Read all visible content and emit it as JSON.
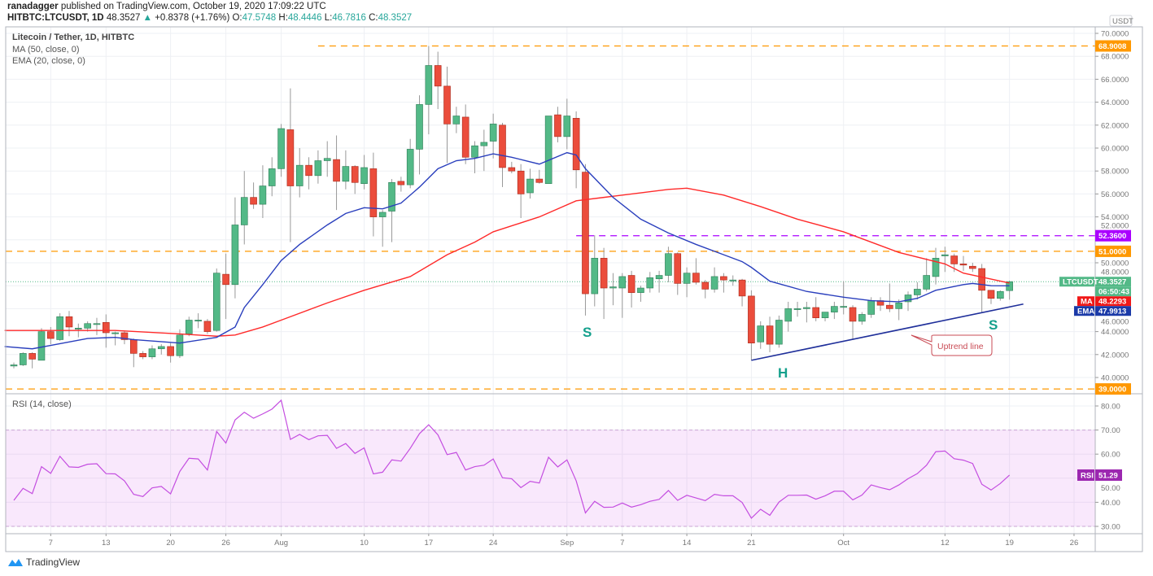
{
  "header": {
    "author": "ranadagger",
    "published": "published on TradingView.com, October 19, 2020 17:09:22 UTC",
    "symbol": "HITBTC:LTCUSDT, 1D",
    "last": "48.3527",
    "change": "+0.8378 (+1.76%)",
    "o_label": "O:",
    "o": "47.5748",
    "h_label": "H:",
    "h": "48.4446",
    "l_label": "L:",
    "l": "46.7816",
    "c_label": "C:",
    "c": "48.3527"
  },
  "legend": {
    "title": "Litecoin / Tether, 1D, HITBTC",
    "ma": "MA (50, close, 0)",
    "ema": "EMA (20, close, 0)",
    "rsi": "RSI (14, close)"
  },
  "axis": {
    "currency": "USDT",
    "tags": {
      "res_high": "68.9008",
      "res_purple": "52.3600",
      "res_51": "51.0000",
      "support": "39.0000",
      "symbol": "LTCUSDT",
      "last": "48.3527",
      "countdown": "06:50:43",
      "ma_label": "MA",
      "ma": "48.2293",
      "ema_label": "EMA",
      "ema": "47.9913",
      "rsi_label": "RSI",
      "rsi": "51.29"
    }
  },
  "annotations": {
    "s_left": "S",
    "head": "H",
    "s_right": "S",
    "uptrend": "Uptrend line"
  },
  "colors": {
    "up": "#53b987",
    "down": "#eb4d3c",
    "ma": "#ff2a2a",
    "ema": "#2a3fbd",
    "orange": "#ff9800",
    "purple": "#aa00ff",
    "trend": "#1f2f9a",
    "rsi": "#c44ee0"
  },
  "logo": "TradingView",
  "chart_data": {
    "type": "candlestick",
    "title": "Litecoin / Tether, 1D, HITBTC",
    "start_date": "2020-07-03",
    "ohlc": [
      [
        41.0,
        41.3,
        40.8,
        41.1
      ],
      [
        41.1,
        42.2,
        41.0,
        42.1
      ],
      [
        42.1,
        42.2,
        40.8,
        41.6
      ],
      [
        41.5,
        44.3,
        41.5,
        44.0
      ],
      [
        44.0,
        44.4,
        42.9,
        43.4
      ],
      [
        43.3,
        45.6,
        43.2,
        45.3
      ],
      [
        45.3,
        45.8,
        43.6,
        44.4
      ],
      [
        44.3,
        44.7,
        43.5,
        44.3
      ],
      [
        44.3,
        44.9,
        44.0,
        44.7
      ],
      [
        44.7,
        45.2,
        43.7,
        44.7
      ],
      [
        44.8,
        45.5,
        42.6,
        43.9
      ],
      [
        43.9,
        44.0,
        42.8,
        43.9
      ],
      [
        43.9,
        44.1,
        42.9,
        43.3
      ],
      [
        43.3,
        43.4,
        40.9,
        42.1
      ],
      [
        42.1,
        42.3,
        41.6,
        41.8
      ],
      [
        41.8,
        42.8,
        41.6,
        42.5
      ],
      [
        42.5,
        42.9,
        42.0,
        42.7
      ],
      [
        42.7,
        43.0,
        41.3,
        41.9
      ],
      [
        41.9,
        44.2,
        41.7,
        43.7
      ],
      [
        43.8,
        45.3,
        43.6,
        45.0
      ],
      [
        45.0,
        45.6,
        44.3,
        45.0
      ],
      [
        44.9,
        45.1,
        43.8,
        44.0
      ],
      [
        44.1,
        49.5,
        44.0,
        49.1
      ],
      [
        49.0,
        50.8,
        45.1,
        48.1
      ],
      [
        48.1,
        55.7,
        46.9,
        53.3
      ],
      [
        53.3,
        58.0,
        51.6,
        55.7
      ],
      [
        55.7,
        57.0,
        54.7,
        55.1
      ],
      [
        55.1,
        58.5,
        53.9,
        56.7
      ],
      [
        56.7,
        59.2,
        55.8,
        58.2
      ],
      [
        58.2,
        62.1,
        57.5,
        61.7
      ],
      [
        61.6,
        65.2,
        51.8,
        56.7
      ],
      [
        56.7,
        60.0,
        55.7,
        58.5
      ],
      [
        58.5,
        59.2,
        56.4,
        57.6
      ],
      [
        57.6,
        59.8,
        56.9,
        58.9
      ],
      [
        58.9,
        60.6,
        57.5,
        59.1
      ],
      [
        59.0,
        61.1,
        54.6,
        57.1
      ],
      [
        57.1,
        59.8,
        56.4,
        58.4
      ],
      [
        58.4,
        58.5,
        56.0,
        57.0
      ],
      [
        56.9,
        59.4,
        56.4,
        58.3
      ],
      [
        58.2,
        59.6,
        52.3,
        54.0
      ],
      [
        54.0,
        54.6,
        51.4,
        54.4
      ],
      [
        54.5,
        57.3,
        51.8,
        57.0
      ],
      [
        57.1,
        57.5,
        56.2,
        56.8
      ],
      [
        56.8,
        60.8,
        56.5,
        59.9
      ],
      [
        59.9,
        64.6,
        57.7,
        63.8
      ],
      [
        63.8,
        68.9,
        61.2,
        67.2
      ],
      [
        67.2,
        68.4,
        63.4,
        65.4
      ],
      [
        65.4,
        67.1,
        58.7,
        62.1
      ],
      [
        62.1,
        63.6,
        61.3,
        62.8
      ],
      [
        62.7,
        63.8,
        58.6,
        59.2
      ],
      [
        59.2,
        60.6,
        57.8,
        60.2
      ],
      [
        60.2,
        61.6,
        58.0,
        60.5
      ],
      [
        60.6,
        63.0,
        59.1,
        62.1
      ],
      [
        62.0,
        62.2,
        56.6,
        58.3
      ],
      [
        58.3,
        58.8,
        57.8,
        58.0
      ],
      [
        58.0,
        58.6,
        53.9,
        56.0
      ],
      [
        56.1,
        58.2,
        55.6,
        57.3
      ],
      [
        57.3,
        58.1,
        56.9,
        57.0
      ],
      [
        56.9,
        62.8,
        56.9,
        62.8
      ],
      [
        62.9,
        63.6,
        60.5,
        61.0
      ],
      [
        61.0,
        64.3,
        59.9,
        62.8
      ],
      [
        62.6,
        63.2,
        56.5,
        58.1
      ],
      [
        57.9,
        58.6,
        45.4,
        47.3
      ],
      [
        47.3,
        52.4,
        46.2,
        50.4
      ],
      [
        50.4,
        51.3,
        45.1,
        47.8
      ],
      [
        47.8,
        49.1,
        46.3,
        47.9
      ],
      [
        47.8,
        49.1,
        45.2,
        48.8
      ],
      [
        48.9,
        49.3,
        46.1,
        47.4
      ],
      [
        47.4,
        48.0,
        46.6,
        47.8
      ],
      [
        47.8,
        49.2,
        47.4,
        48.7
      ],
      [
        48.6,
        49.3,
        47.4,
        48.9
      ],
      [
        48.9,
        51.4,
        48.3,
        50.8
      ],
      [
        50.8,
        50.9,
        47.2,
        48.2
      ],
      [
        48.2,
        49.6,
        47.0,
        49.1
      ],
      [
        49.1,
        50.4,
        48.1,
        48.3
      ],
      [
        48.3,
        48.5,
        46.9,
        47.7
      ],
      [
        47.7,
        49.6,
        47.4,
        48.8
      ],
      [
        48.8,
        49.1,
        47.4,
        48.5
      ],
      [
        48.5,
        48.9,
        48.0,
        48.5
      ],
      [
        48.5,
        48.6,
        46.2,
        47.1
      ],
      [
        47.1,
        47.6,
        41.5,
        43.0
      ],
      [
        43.1,
        44.9,
        42.5,
        44.5
      ],
      [
        44.5,
        45.3,
        42.2,
        42.9
      ],
      [
        42.9,
        45.4,
        42.6,
        45.0
      ],
      [
        44.9,
        46.6,
        44.0,
        46.0
      ],
      [
        46.0,
        46.6,
        45.3,
        46.0
      ],
      [
        46.0,
        46.6,
        44.8,
        46.1
      ],
      [
        46.1,
        47.0,
        44.9,
        45.2
      ],
      [
        45.2,
        45.7,
        44.9,
        45.7
      ],
      [
        45.7,
        46.6,
        45.1,
        46.2
      ],
      [
        46.2,
        48.4,
        45.5,
        46.2
      ],
      [
        46.1,
        46.3,
        43.3,
        44.9
      ],
      [
        44.9,
        45.7,
        44.6,
        45.5
      ],
      [
        45.5,
        47.0,
        45.2,
        46.7
      ],
      [
        46.7,
        47.0,
        45.8,
        46.3
      ],
      [
        46.3,
        48.2,
        45.7,
        46.0
      ],
      [
        46.0,
        46.8,
        45.0,
        46.5
      ],
      [
        46.6,
        47.5,
        45.8,
        47.2
      ],
      [
        47.2,
        48.3,
        46.8,
        47.7
      ],
      [
        47.7,
        50.4,
        47.5,
        48.9
      ],
      [
        48.8,
        51.3,
        48.1,
        50.4
      ],
      [
        50.6,
        51.4,
        49.2,
        50.7
      ],
      [
        50.6,
        50.8,
        49.2,
        49.9
      ],
      [
        49.9,
        50.6,
        49.3,
        49.8
      ],
      [
        49.7,
        50.0,
        49.2,
        49.5
      ],
      [
        49.5,
        49.9,
        45.7,
        47.6
      ],
      [
        47.6,
        47.6,
        46.4,
        46.9
      ],
      [
        46.9,
        47.6,
        46.7,
        47.5
      ],
      [
        47.5748,
        48.4446,
        46.7816,
        48.3527
      ]
    ],
    "ema20": [
      [
        -1,
        42.7
      ],
      [
        2,
        42.5
      ],
      [
        4,
        42.8
      ],
      [
        8,
        43.4
      ],
      [
        11,
        43.5
      ],
      [
        13,
        43.3
      ],
      [
        18,
        43.0
      ],
      [
        22,
        43.5
      ],
      [
        24,
        44.4
      ],
      [
        25,
        46.1
      ],
      [
        27,
        48.1
      ],
      [
        29,
        50.2
      ],
      [
        31,
        51.6
      ],
      [
        34,
        53.3
      ],
      [
        36,
        54.3
      ],
      [
        38,
        54.8
      ],
      [
        40,
        54.7
      ],
      [
        42,
        55.2
      ],
      [
        44,
        56.6
      ],
      [
        46,
        58.2
      ],
      [
        48,
        58.9
      ],
      [
        50,
        59.1
      ],
      [
        52,
        59.5
      ],
      [
        54,
        59.2
      ],
      [
        57,
        58.6
      ],
      [
        60,
        59.6
      ],
      [
        61,
        59.4
      ],
      [
        62,
        58.2
      ],
      [
        65,
        55.7
      ],
      [
        68,
        53.8
      ],
      [
        71,
        52.6
      ],
      [
        74,
        51.6
      ],
      [
        77,
        50.7
      ],
      [
        79,
        50.1
      ],
      [
        80,
        49.6
      ],
      [
        82,
        48.4
      ],
      [
        86,
        47.5
      ],
      [
        90,
        47.0
      ],
      [
        93,
        46.7
      ],
      [
        96,
        46.6
      ],
      [
        98,
        46.9
      ],
      [
        100,
        47.6
      ],
      [
        103,
        48.1
      ],
      [
        104,
        48.2
      ],
      [
        106,
        48.0
      ],
      [
        108,
        47.99
      ]
    ],
    "ma50": [
      [
        -1,
        44.1
      ],
      [
        11,
        44.1
      ],
      [
        18,
        43.8
      ],
      [
        22,
        43.6
      ],
      [
        24,
        43.7
      ],
      [
        27,
        44.4
      ],
      [
        29,
        45.0
      ],
      [
        34,
        46.5
      ],
      [
        38,
        47.6
      ],
      [
        43,
        48.8
      ],
      [
        47,
        50.7
      ],
      [
        50,
        51.8
      ],
      [
        52,
        52.7
      ],
      [
        57,
        54.0
      ],
      [
        61,
        55.4
      ],
      [
        64,
        55.7
      ],
      [
        71,
        56.4
      ],
      [
        73,
        56.5
      ],
      [
        77,
        55.9
      ],
      [
        81,
        54.9
      ],
      [
        85,
        53.8
      ],
      [
        90,
        52.7
      ],
      [
        96,
        50.9
      ],
      [
        101,
        49.9
      ],
      [
        103,
        49.1
      ],
      [
        108,
        48.23
      ]
    ],
    "rsi14": [
      40.8,
      45.8,
      43.6,
      54.8,
      52.0,
      59.1,
      54.7,
      54.5,
      55.8,
      56.0,
      51.9,
      51.8,
      48.9,
      43.3,
      42.4,
      46.0,
      46.6,
      43.5,
      52.8,
      58.3,
      58.0,
      53.4,
      69.4,
      64.6,
      74.2,
      77.4,
      74.9,
      76.7,
      78.7,
      82.4,
      66.1,
      68.2,
      66.0,
      67.6,
      67.8,
      62.4,
      64.4,
      60.3,
      62.6,
      51.8,
      52.5,
      57.6,
      57.1,
      62.4,
      68.5,
      72.2,
      68.0,
      59.8,
      60.7,
      53.4,
      54.8,
      55.4,
      58.0,
      50.2,
      49.8,
      46.1,
      48.7,
      48.0,
      58.7,
      54.7,
      57.6,
      48.9,
      35.6,
      40.4,
      37.9,
      38.0,
      39.7,
      38.0,
      39.0,
      40.4,
      41.2,
      44.9,
      40.8,
      42.9,
      41.8,
      40.7,
      43.3,
      42.7,
      42.7,
      39.9,
      33.4,
      37.1,
      34.6,
      40.1,
      42.9,
      42.9,
      43.0,
      41.3,
      42.7,
      44.6,
      44.6,
      41.0,
      43.0,
      47.2,
      46.1,
      45.2,
      47.2,
      49.8,
      51.9,
      55.4,
      61.0,
      61.3,
      58.1,
      57.5,
      56.1,
      47.5,
      45.1,
      47.8,
      51.3
    ],
    "rsi_band": [
      30,
      70
    ],
    "horizontal_levels": [
      {
        "value": 68.9008,
        "color": "orange",
        "from_index": 33
      },
      {
        "value": 52.36,
        "color": "purple",
        "from_index": 61
      },
      {
        "value": 51.0,
        "color": "orange",
        "from_index": -1
      },
      {
        "value": 39.0,
        "color": "orange",
        "from_index": -1
      }
    ],
    "uptrend_line": [
      [
        80,
        41.5
      ],
      [
        109.5,
        46.4
      ]
    ],
    "x_ticks": [
      {
        "i": 4,
        "label": "7"
      },
      {
        "i": 10,
        "label": "13"
      },
      {
        "i": 17,
        "label": "20"
      },
      {
        "i": 23,
        "label": "26"
      },
      {
        "i": 29,
        "label": "Aug"
      },
      {
        "i": 38,
        "label": "10"
      },
      {
        "i": 45,
        "label": "17"
      },
      {
        "i": 52,
        "label": "24"
      },
      {
        "i": 60,
        "label": "Sep"
      },
      {
        "i": 66,
        "label": "7"
      },
      {
        "i": 73,
        "label": "14"
      },
      {
        "i": 80,
        "label": "21"
      },
      {
        "i": 90,
        "label": "Oct"
      },
      {
        "i": 101,
        "label": "12"
      },
      {
        "i": 108,
        "label": "19"
      },
      {
        "i": 115,
        "label": "26"
      }
    ],
    "y_ticks": [
      "40.0000",
      "42.0000",
      "44.0000",
      "46.0000",
      "48.0000",
      "50.0000",
      "52.0000",
      "54.0000",
      "56.0000",
      "58.0000",
      "60.0000",
      "62.0000",
      "64.0000",
      "66.0000",
      "68.0000",
      "70.0000"
    ],
    "rsi_ticks": [
      "30.00",
      "40.00",
      "50.00",
      "60.00",
      "70.00",
      "80.00"
    ],
    "ylim": [
      38.5,
      70.5
    ],
    "rsi_lim": [
      27,
      84
    ]
  }
}
